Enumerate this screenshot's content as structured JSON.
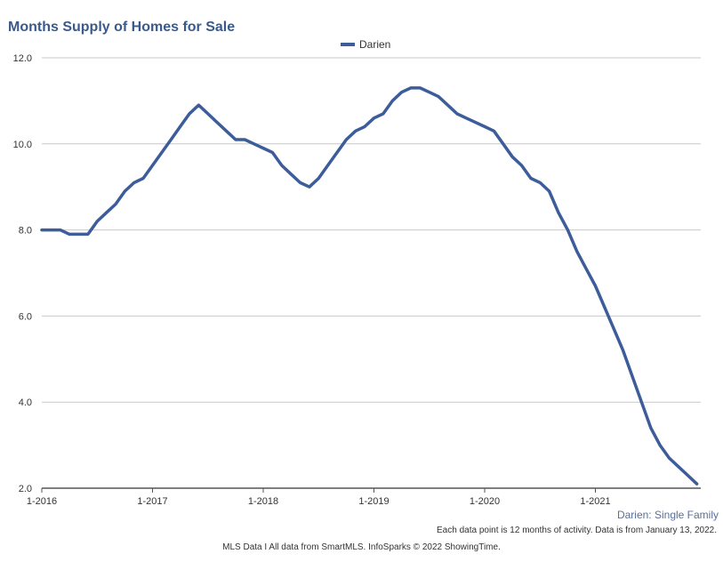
{
  "chart_data": {
    "type": "line",
    "title": "Months Supply of Homes for Sale",
    "series": [
      {
        "name": "Darien",
        "color": "#3c5d9a",
        "values": [
          8.0,
          8.0,
          8.0,
          7.9,
          7.9,
          7.9,
          8.2,
          8.4,
          8.6,
          8.9,
          9.1,
          9.2,
          9.5,
          9.8,
          10.1,
          10.4,
          10.7,
          10.9,
          10.7,
          10.5,
          10.3,
          10.1,
          10.1,
          10.0,
          9.9,
          9.8,
          9.5,
          9.3,
          9.1,
          9.0,
          9.2,
          9.5,
          9.8,
          10.1,
          10.3,
          10.4,
          10.6,
          10.7,
          11.0,
          11.2,
          11.3,
          11.3,
          11.2,
          11.1,
          10.9,
          10.7,
          10.6,
          10.5,
          10.4,
          10.3,
          10.0,
          9.7,
          9.5,
          9.2,
          9.1,
          8.9,
          8.4,
          8.0,
          7.5,
          7.1,
          6.7,
          6.2,
          5.7,
          5.2,
          4.6,
          4.0,
          3.4,
          3.0,
          2.7,
          2.5,
          2.3,
          2.1
        ]
      }
    ],
    "x_tick_labels": [
      "1-2016",
      "1-2017",
      "1-2018",
      "1-2019",
      "1-2020",
      "1-2021"
    ],
    "y_ticks": [
      "2.0",
      "4.0",
      "6.0",
      "8.0",
      "10.0",
      "12.0"
    ],
    "ylim": [
      2.0,
      12.0
    ],
    "legend_position": "top-center"
  },
  "subtitle_right": "Darien: Single Family",
  "footnote": "Each data point is 12 months of activity. Data is from January 13, 2022.",
  "source": "MLS Data I All data from SmartMLS. InfoSparks © 2022 ShowingTime."
}
